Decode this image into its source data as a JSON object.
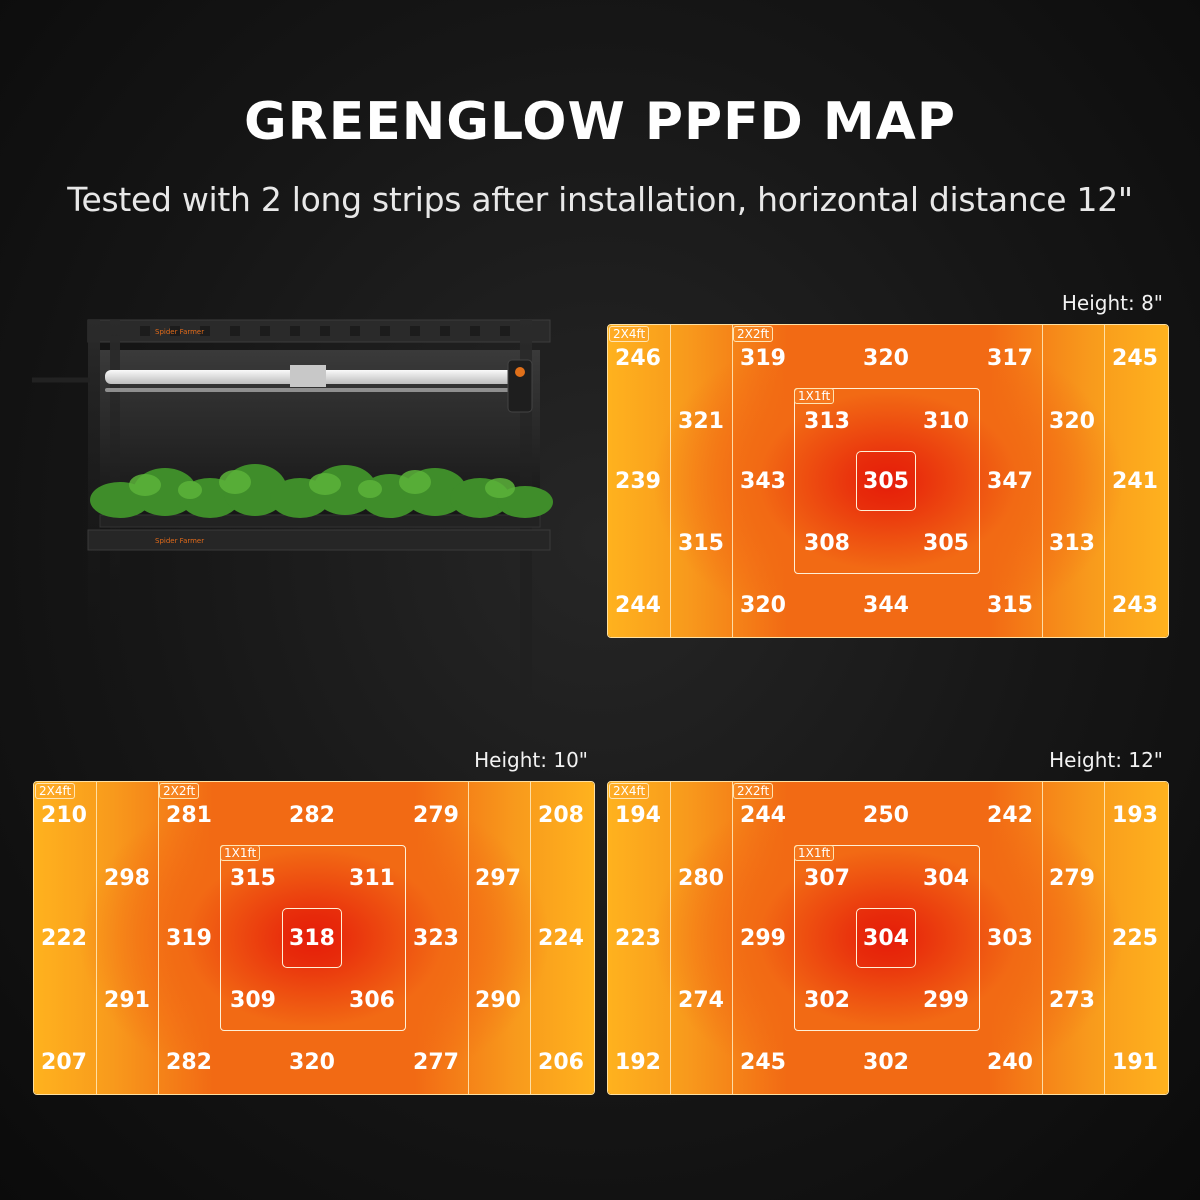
{
  "title": "GREENGLOW PPFD MAP",
  "subtitle": "Tested with 2 long strips after installation, horizontal distance 12\"",
  "illustration": {
    "brand_text": "Spider Farmer"
  },
  "zone_labels": {
    "outer": "2X4ft",
    "mid": "2X2ft",
    "inner": "1X1ft"
  },
  "colors": {
    "bg": "#111111",
    "center": "#e61e0a",
    "mid": "#f26a14",
    "edge": "#ffb21e",
    "line": "#ffe5b4"
  },
  "chart_data": [
    {
      "type": "heatmap",
      "title": "Height: 8\"",
      "unit": "",
      "outer_left": [
        246,
        239,
        244
      ],
      "outer_right": [
        245,
        241,
        243
      ],
      "ring_left": [
        321,
        315
      ],
      "ring_right": [
        320,
        313
      ],
      "mid_top": [
        319,
        320,
        317
      ],
      "mid_side": [
        343,
        347
      ],
      "mid_bottom": [
        320,
        344,
        315
      ],
      "inner_top": [
        313,
        310
      ],
      "inner_bottom": [
        308,
        305
      ],
      "center": 305
    },
    {
      "type": "heatmap",
      "title": "Height: 10\"",
      "unit": "",
      "outer_left": [
        210,
        222,
        207
      ],
      "outer_right": [
        208,
        224,
        206
      ],
      "ring_left": [
        298,
        291
      ],
      "ring_right": [
        297,
        290
      ],
      "mid_top": [
        281,
        282,
        279
      ],
      "mid_side": [
        319,
        323
      ],
      "mid_bottom": [
        282,
        320,
        277
      ],
      "inner_top": [
        315,
        311
      ],
      "inner_bottom": [
        309,
        306
      ],
      "center": 318
    },
    {
      "type": "heatmap",
      "title": "Height: 12\"",
      "unit": "",
      "outer_left": [
        194,
        223,
        192
      ],
      "outer_right": [
        193,
        225,
        191
      ],
      "ring_left": [
        280,
        274
      ],
      "ring_right": [
        279,
        273
      ],
      "mid_top": [
        244,
        250,
        242
      ],
      "mid_side": [
        299,
        303
      ],
      "mid_bottom": [
        245,
        302,
        240
      ],
      "inner_top": [
        307,
        304
      ],
      "inner_bottom": [
        302,
        299
      ],
      "center": 304
    }
  ]
}
